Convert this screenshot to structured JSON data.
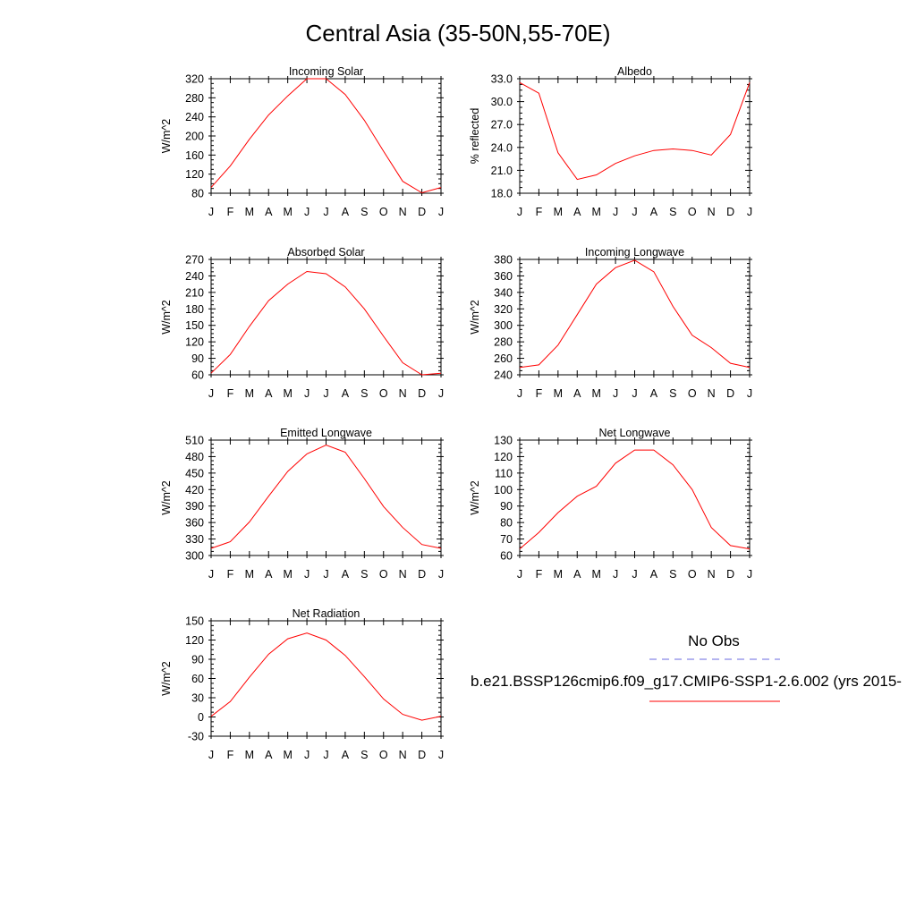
{
  "figure": {
    "title": "Central Asia (35-50N,55-70E)"
  },
  "legend": {
    "obs_label": "No Obs",
    "model_label": "b.e21.BSSP126cmip6.f09_g17.CMIP6-SSP1-2.6.002 (yrs 2015-",
    "obs_color": "#6a6ae0",
    "model_color": "#ff0000",
    "obs_line_style": "dashed"
  },
  "chart_data": [
    {
      "type": "line",
      "title": "Incoming Solar",
      "ylabel": "W/m^2",
      "categories": [
        "J",
        "F",
        "M",
        "A",
        "M",
        "J",
        "J",
        "A",
        "S",
        "O",
        "N",
        "D",
        "J"
      ],
      "ylim": [
        80,
        320
      ],
      "yticks": [
        "80",
        "120",
        "160",
        "200",
        "240",
        "280",
        "320"
      ],
      "series": [
        {
          "values": [
            92,
            137,
            193,
            244,
            284,
            320,
            320,
            287,
            233,
            168,
            105,
            81,
            92
          ]
        }
      ]
    },
    {
      "type": "line",
      "title": "Albedo",
      "ylabel": "% reflected",
      "categories": [
        "J",
        "F",
        "M",
        "A",
        "M",
        "J",
        "J",
        "A",
        "S",
        "O",
        "N",
        "D",
        "J"
      ],
      "ylim": [
        18,
        33
      ],
      "yticks": [
        "18.0",
        "21.0",
        "24.0",
        "27.0",
        "30.0",
        "33.0"
      ],
      "series": [
        {
          "values": [
            32.5,
            31.1,
            23.3,
            19.8,
            20.4,
            21.9,
            22.9,
            23.6,
            23.8,
            23.6,
            23.0,
            25.7,
            32.5
          ]
        }
      ]
    },
    {
      "type": "line",
      "title": "Absorbed Solar",
      "ylabel": "W/m^2",
      "categories": [
        "J",
        "F",
        "M",
        "A",
        "M",
        "J",
        "J",
        "A",
        "S",
        "O",
        "N",
        "D",
        "J"
      ],
      "ylim": [
        60,
        270
      ],
      "yticks": [
        "60",
        "90",
        "120",
        "150",
        "180",
        "210",
        "240",
        "270"
      ],
      "series": [
        {
          "values": [
            63,
            97,
            148,
            195,
            225,
            248,
            244,
            220,
            180,
            130,
            82,
            60,
            63
          ]
        }
      ]
    },
    {
      "type": "line",
      "title": "Incoming Longwave",
      "ylabel": "W/m^2",
      "categories": [
        "J",
        "F",
        "M",
        "A",
        "M",
        "J",
        "J",
        "A",
        "S",
        "O",
        "N",
        "D",
        "J"
      ],
      "ylim": [
        240,
        380
      ],
      "yticks": [
        "240",
        "260",
        "280",
        "300",
        "320",
        "340",
        "360",
        "380"
      ],
      "series": [
        {
          "values": [
            249,
            252,
            276,
            313,
            350,
            370,
            379,
            365,
            323,
            288,
            273,
            254,
            249
          ]
        }
      ]
    },
    {
      "type": "line",
      "title": "Emitted Longwave",
      "ylabel": "W/m^2",
      "categories": [
        "J",
        "F",
        "M",
        "A",
        "M",
        "J",
        "J",
        "A",
        "S",
        "O",
        "N",
        "D",
        "J"
      ],
      "ylim": [
        300,
        510
      ],
      "yticks": [
        "300",
        "330",
        "360",
        "390",
        "420",
        "450",
        "480",
        "510"
      ],
      "series": [
        {
          "values": [
            313,
            325,
            361,
            408,
            453,
            485,
            501,
            488,
            440,
            389,
            351,
            320,
            313
          ]
        }
      ]
    },
    {
      "type": "line",
      "title": "Net Longwave",
      "ylabel": "W/m^2",
      "categories": [
        "J",
        "F",
        "M",
        "A",
        "M",
        "J",
        "J",
        "A",
        "S",
        "O",
        "N",
        "D",
        "J"
      ],
      "ylim": [
        60,
        130
      ],
      "yticks": [
        "60",
        "70",
        "80",
        "90",
        "100",
        "110",
        "120",
        "130"
      ],
      "series": [
        {
          "values": [
            64,
            74,
            86,
            96,
            102,
            116,
            124,
            124,
            115,
            100,
            77,
            66,
            64
          ]
        }
      ]
    },
    {
      "type": "line",
      "title": "Net Radiation",
      "ylabel": "W/m^2",
      "categories": [
        "J",
        "F",
        "M",
        "A",
        "M",
        "J",
        "J",
        "A",
        "S",
        "O",
        "N",
        "D",
        "J"
      ],
      "ylim": [
        -30,
        150
      ],
      "yticks": [
        "-30",
        "0",
        "30",
        "60",
        "90",
        "120",
        "150"
      ],
      "series": [
        {
          "values": [
            1,
            24,
            62,
            98,
            122,
            131,
            120,
            96,
            63,
            28,
            4,
            -5,
            1
          ]
        }
      ]
    }
  ]
}
